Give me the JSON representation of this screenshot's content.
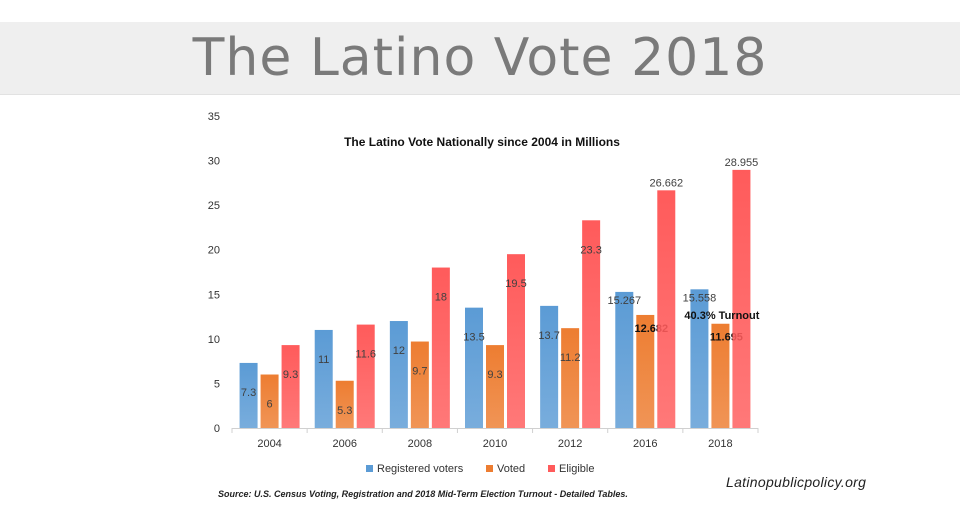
{
  "slide_title": "The Latino Vote 2018",
  "source_note": "Source: U.S. Census Voting, Registration and 2018 Mid-Term Election Turnout - Detailed Tables.",
  "website": "Latinopublicpolicy.org",
  "chart_data": {
    "type": "bar",
    "title": "The Latino Vote Nationally since 2004 in Millions",
    "categories": [
      "2004",
      "2006",
      "2008",
      "2010",
      "2012",
      "2016",
      "2018"
    ],
    "series": [
      {
        "name": "Registered voters",
        "color": "#5b9bd5",
        "values": [
          7.3,
          11,
          12,
          13.5,
          13.7,
          15.267,
          15.558
        ],
        "labels": [
          "7.3",
          "11",
          "12",
          "13.5",
          "13.7",
          "15.267",
          "15.558"
        ]
      },
      {
        "name": "Voted",
        "color": "#ed7d31",
        "values": [
          6,
          5.3,
          9.7,
          9.3,
          11.2,
          12.682,
          11.695
        ],
        "labels": [
          "6",
          "5.3",
          "9.7",
          "9.3",
          "11.2",
          "12.682",
          "11.695"
        ]
      },
      {
        "name": "Eligible",
        "color": "#ff5b5b",
        "values": [
          9.3,
          11.6,
          18,
          19.5,
          23.3,
          26.662,
          28.955
        ],
        "labels": [
          "9.3",
          "11.6",
          "18",
          "19.5",
          "23.3",
          "26.662",
          "28.955"
        ]
      }
    ],
    "ylim": [
      0,
      35
    ],
    "yticks": [
      "0",
      "5",
      "10",
      "15",
      "20",
      "25",
      "30",
      "35"
    ],
    "grid": false,
    "legend": "bottom",
    "annotation": "40.3% Turnout"
  }
}
